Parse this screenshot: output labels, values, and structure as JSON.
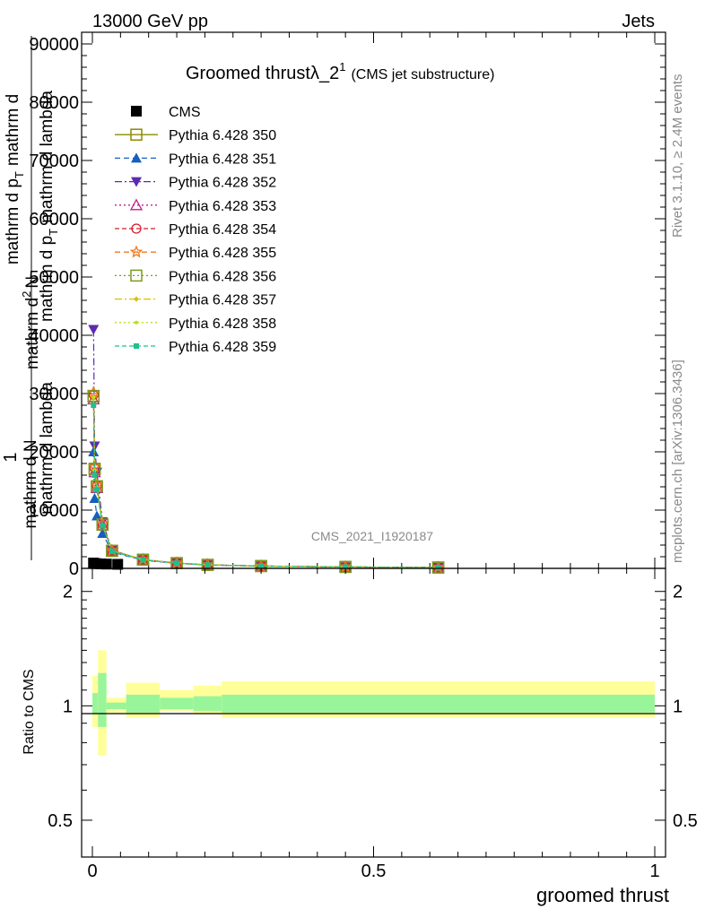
{
  "header": {
    "left": "13000 GeV pp",
    "right": "Jets"
  },
  "title": {
    "main": "Groomed thrustλ_2",
    "sup": "1",
    "sub": "(CMS jet substructure)"
  },
  "analysis_label": "CMS_2021_I1920187",
  "side_labels": {
    "rivet": "Rivet 3.1.10, ≥ 2.4M events",
    "source": "mcplots.cern.ch [arXiv:1306.3436]"
  },
  "ylabel_upper": {
    "numerator_1": "1",
    "line1": "mathrm d N",
    "line2": "mathrm d p",
    "line2_sub": "T",
    "line3": "mathrm d",
    "line3b": "mathrm d lambda",
    "line4": "mathrm d",
    "line4_sup": "2",
    "line4_b": "N",
    "line5": "mathrm d p",
    "line5_sub": "T",
    "line6": "mathrm d lambda"
  },
  "ylabel_lower": "Ratio to CMS",
  "xlabel": "groomed thrust",
  "legend": [
    {
      "label": "CMS",
      "color": "#000000",
      "marker": "square-filled",
      "dash": "none"
    },
    {
      "label": "Pythia 6.428 350",
      "color": "#8b8b00",
      "marker": "square-open",
      "dash": "solid"
    },
    {
      "label": "Pythia 6.428 351",
      "color": "#1560bd",
      "marker": "triangle-up-filled",
      "dash": "6,4"
    },
    {
      "label": "Pythia 6.428 352",
      "color": "#5b2bb0",
      "marker": "triangle-down-filled",
      "dash": "8,3,2,3"
    },
    {
      "label": "Pythia 6.428 353",
      "color": "#c0208a",
      "marker": "triangle-up-open",
      "dash": "2,3"
    },
    {
      "label": "Pythia 6.428 354",
      "color": "#d81b2a",
      "marker": "circle-open",
      "dash": "5,3"
    },
    {
      "label": "Pythia 6.428 355",
      "color": "#f07820",
      "marker": "star-open",
      "dash": "6,4"
    },
    {
      "label": "Pythia 6.428 356",
      "color": "#7a9a1a",
      "marker": "square-open",
      "dash": "2,3"
    },
    {
      "label": "Pythia 6.428 357",
      "color": "#d8c000",
      "marker": "diamond-filled",
      "dash": "8,3,2,3"
    },
    {
      "label": "Pythia 6.428 358",
      "color": "#b8e018",
      "marker": "dot",
      "dash": "2,3"
    },
    {
      "label": "Pythia 6.428 359",
      "color": "#1fc08a",
      "marker": "square-small",
      "dash": "5,3"
    }
  ],
  "chart_data": [
    {
      "type": "line",
      "xlim": [
        0,
        1
      ],
      "ylim": [
        0,
        92000
      ],
      "yticks": [
        0,
        10000,
        20000,
        30000,
        40000,
        50000,
        60000,
        70000,
        80000,
        90000
      ],
      "ytick_labels": [
        "0",
        "10000",
        "20000",
        "30000",
        "40000",
        "50000",
        "60000",
        "70000",
        "80000",
        "90000"
      ],
      "data_series": {
        "name": "CMS",
        "x": [
          0.002,
          0.007,
          0.015,
          0.025,
          0.045
        ],
        "y": [
          300,
          200,
          150,
          120,
          80
        ]
      },
      "mc_x": [
        0.002,
        0.004,
        0.008,
        0.018,
        0.035,
        0.09,
        0.15,
        0.205,
        0.3,
        0.45,
        0.615
      ],
      "series": [
        {
          "name": "Pythia 6.428 350",
          "values": [
            29500,
            17000,
            14000,
            7500,
            3000,
            1500,
            900,
            600,
            400,
            250,
            150
          ]
        },
        {
          "name": "Pythia 6.428 351",
          "values": [
            20000,
            12000,
            9000,
            6000,
            2800,
            1400,
            850,
            580,
            380,
            240,
            140
          ]
        },
        {
          "name": "Pythia 6.428 352",
          "values": [
            41000,
            21000,
            16500,
            8000,
            3100,
            1500,
            900,
            600,
            400,
            250,
            150
          ]
        },
        {
          "name": "Pythia 6.428 353",
          "values": [
            29000,
            16500,
            13800,
            7400,
            2950,
            1480,
            890,
            595,
            398,
            248,
            148
          ]
        },
        {
          "name": "Pythia 6.428 354",
          "values": [
            29800,
            17200,
            14200,
            7600,
            3050,
            1510,
            905,
            605,
            402,
            252,
            151
          ]
        },
        {
          "name": "Pythia 6.428 355",
          "values": [
            30200,
            17400,
            14300,
            7700,
            3080,
            1520,
            910,
            610,
            405,
            253,
            152
          ]
        },
        {
          "name": "Pythia 6.428 356",
          "values": [
            29600,
            17100,
            14100,
            7550,
            3020,
            1500,
            900,
            600,
            400,
            250,
            150
          ]
        },
        {
          "name": "Pythia 6.428 357",
          "values": [
            29400,
            16900,
            13900,
            7450,
            2980,
            1490,
            895,
            598,
            399,
            249,
            149
          ]
        },
        {
          "name": "Pythia 6.428 358",
          "values": [
            29300,
            16800,
            13850,
            7420,
            2970,
            1485,
            892,
            596,
            398,
            248,
            148
          ]
        },
        {
          "name": "Pythia 6.428 359",
          "values": [
            28000,
            16000,
            13500,
            7300,
            2900,
            1450,
            880,
            590,
            395,
            246,
            147
          ]
        }
      ]
    },
    {
      "type": "area",
      "xlim": [
        0,
        1
      ],
      "ylim": [
        0.4,
        2.3
      ],
      "yticks": [
        0.5,
        1,
        2
      ],
      "ytick_labels": [
        "0.5",
        "1",
        "2"
      ],
      "xticks": [
        0,
        0.5,
        1
      ],
      "xtick_labels": [
        "0",
        "0.5",
        "1"
      ],
      "bands": {
        "edges": [
          0,
          0.01,
          0.025,
          0.06,
          0.12,
          0.18,
          0.23,
          1.0
        ],
        "yellow_lo": [
          0.88,
          0.74,
          0.96,
          0.93,
          0.97,
          0.95,
          0.93
        ],
        "yellow_hi": [
          1.2,
          1.4,
          1.05,
          1.15,
          1.1,
          1.13,
          1.16
        ],
        "green_lo": [
          0.95,
          0.88,
          0.98,
          0.96,
          0.98,
          0.97,
          0.96
        ],
        "green_hi": [
          1.08,
          1.22,
          1.02,
          1.07,
          1.05,
          1.06,
          1.07
        ]
      }
    }
  ]
}
